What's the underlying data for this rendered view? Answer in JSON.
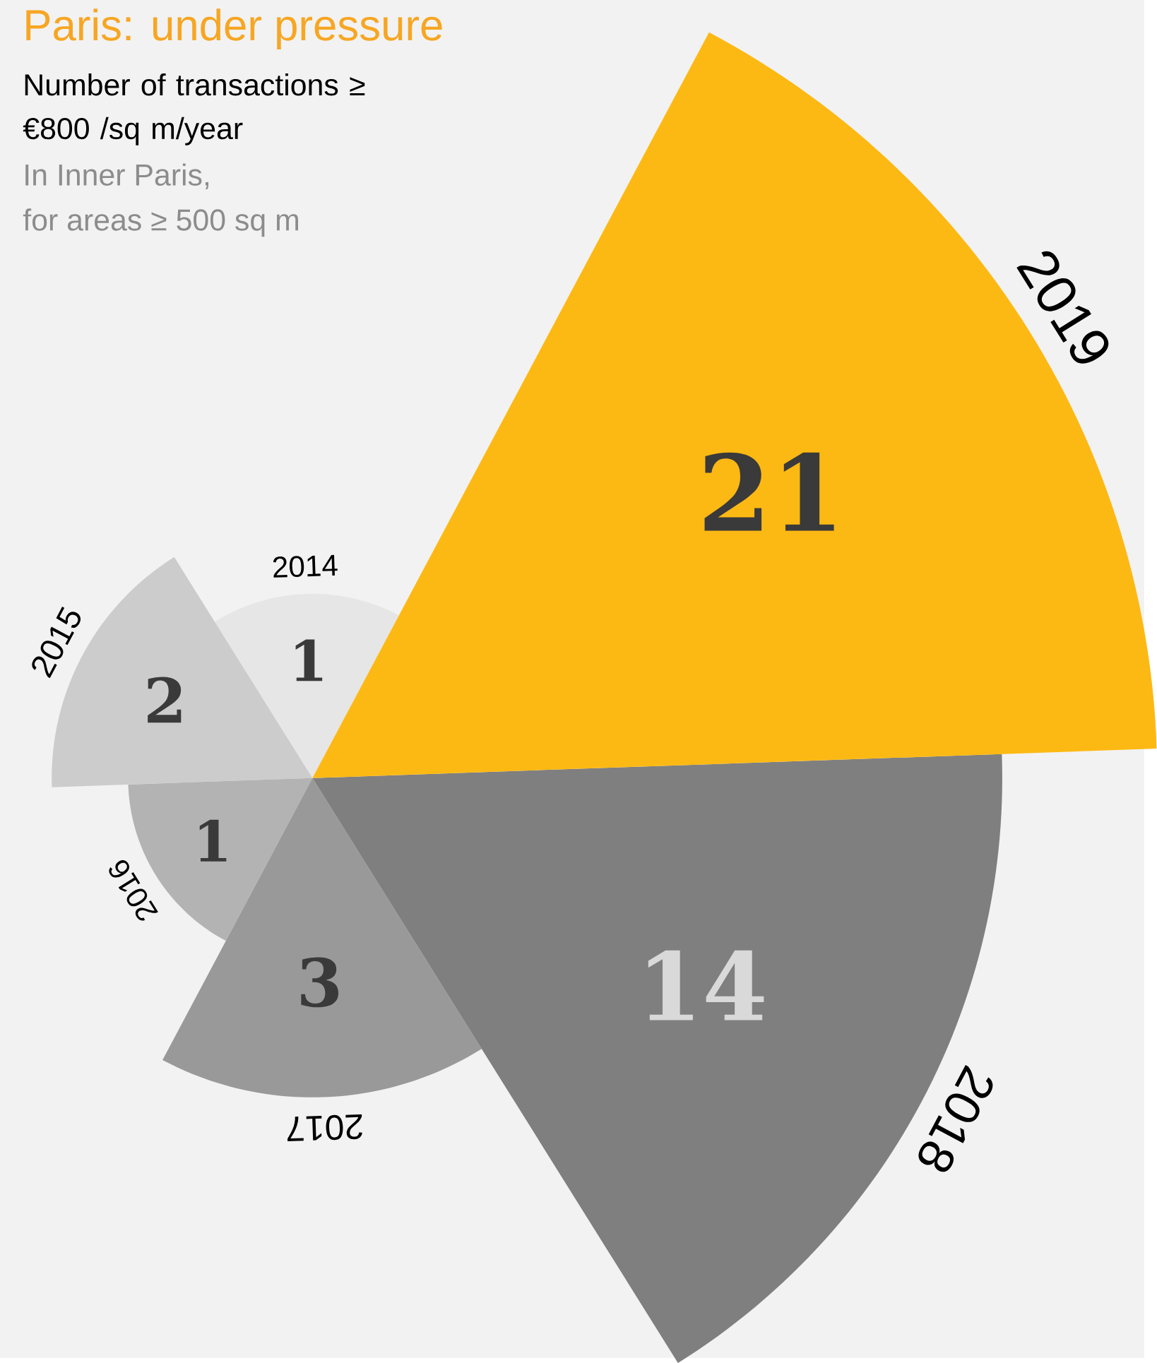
{
  "chart_data": {
    "type": "other",
    "title": "Paris: under pressure",
    "subtitle": "Number of transactions ≥ €800 /sq m/year",
    "annotations": [
      "In Inner Paris,",
      "for areas ≥ 500 sq m"
    ],
    "categories": [
      "2014",
      "2015",
      "2016",
      "2017",
      "2018",
      "2019"
    ],
    "values": [
      1,
      2,
      1,
      3,
      14,
      21
    ],
    "colors": [
      "#e6e6e6",
      "#cccccc",
      "#b3b3b3",
      "#999999",
      "#7f7f7f",
      "#fdb913"
    ],
    "data_labels": true
  }
}
